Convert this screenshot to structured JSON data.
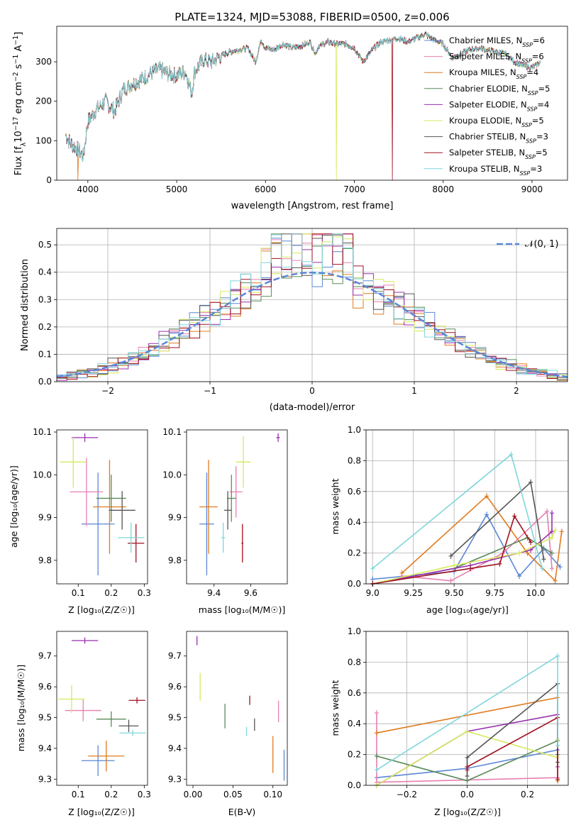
{
  "colors": [
    "#5a87d6",
    "#e87fb1",
    "#e07a1f",
    "#5a8a5a",
    "#9a2fb0",
    "#d6e95a",
    "#555555",
    "#a01020",
    "#7fd6dc"
  ],
  "figure": {
    "title": "PLATE=1324, MJD=53088, FIBERID=0500, z=0.006"
  },
  "chart_data": [
    {
      "id": "spectrum",
      "type": "line",
      "xlabel": "wavelength [Angstrom, rest frame]",
      "ylabel": "Flux [fλ10⁻¹⁷ erg cm⁻² s⁻¹ A⁻¹]",
      "xlim": [
        3650,
        9400
      ],
      "ylim": [
        0,
        390
      ],
      "xticks": [
        4000,
        5000,
        6000,
        7000,
        8000,
        9000
      ],
      "yticks": [
        0,
        100,
        200,
        300
      ],
      "grid": false,
      "legend_position": "top-right",
      "spectrum_anchor_points": {
        "x": [
          3750,
          3800,
          3850,
          3900,
          3950,
          4000,
          4050,
          4100,
          4200,
          4300,
          4400,
          4500,
          4600,
          4700,
          4800,
          4900,
          5000,
          5100,
          5170,
          5200,
          5300,
          5400,
          5500,
          5600,
          5700,
          5800,
          5890,
          5950,
          6000,
          6100,
          6200,
          6300,
          6400,
          6500,
          6563,
          6600,
          6700,
          6800,
          6900,
          7000,
          7100,
          7200,
          7300,
          7400,
          7500,
          7600,
          7700,
          7800,
          7900,
          8000,
          8100,
          8200,
          8300,
          8400,
          8500,
          8600,
          8700,
          8800,
          8900,
          9000,
          9100
        ],
        "y": [
          115,
          95,
          85,
          75,
          60,
          150,
          165,
          180,
          200,
          175,
          230,
          245,
          255,
          270,
          280,
          270,
          265,
          275,
          220,
          275,
          305,
          300,
          315,
          325,
          330,
          335,
          300,
          355,
          335,
          330,
          345,
          335,
          340,
          350,
          320,
          340,
          350,
          345,
          345,
          335,
          300,
          330,
          350,
          355,
          360,
          350,
          360,
          370,
          355,
          345,
          310,
          320,
          330,
          335,
          330,
          325,
          320,
          300,
          290,
          285,
          300
        ]
      },
      "series": [
        {
          "name": "Chabrier MILES, N_SSP=6"
        },
        {
          "name": "Salpeter MILES, N_SSP=6"
        },
        {
          "name": "Kroupa MILES, N_SSP=4"
        },
        {
          "name": "Chabrier ELODIE, N_SSP=5"
        },
        {
          "name": "Salpeter ELODIE, N_SSP=4"
        },
        {
          "name": "Kroupa ELODIE, N_SSP=5"
        },
        {
          "name": "Chabrier STELIB, N_SSP=3"
        },
        {
          "name": "Salpeter STELIB, N_SSP=5"
        },
        {
          "name": "Kroupa STELIB, N_SSP=3"
        }
      ]
    },
    {
      "id": "residuals",
      "type": "histogram",
      "xlabel": "(data-model)/error",
      "ylabel": "Normed distribution",
      "xlim": [
        -2.5,
        2.5
      ],
      "ylim": [
        0,
        0.56
      ],
      "xticks": [
        -2,
        -1,
        0,
        1,
        2
      ],
      "yticks": [
        0.0,
        0.1,
        0.2,
        0.3,
        0.4,
        0.5
      ],
      "grid": true,
      "bin_width": 0.1,
      "legend": [
        {
          "label": "𝒩(0, 1)"
        }
      ],
      "legend_position": "top-right"
    },
    {
      "id": "age-vs-metal",
      "type": "errorbar",
      "xlabel": "Z [log₁₀(Z/Z☉)]",
      "ylabel": "age  [log₁₀(age/yr)]",
      "xlim": [
        0.035,
        0.31
      ],
      "ylim": [
        9.745,
        10.105
      ],
      "xticks": [
        0.1,
        0.2,
        0.3
      ],
      "yticks": [
        9.8,
        9.9,
        10.0,
        10.1
      ],
      "grid": false,
      "points": [
        {
          "x": 0.16,
          "y": 9.885,
          "xerr": 0.05,
          "yerr": 0.12
        },
        {
          "x": 0.125,
          "y": 9.96,
          "xerr": 0.05,
          "yerr": 0.08
        },
        {
          "x": 0.195,
          "y": 9.925,
          "xerr": 0.05,
          "yerr": 0.11
        },
        {
          "x": 0.2,
          "y": 9.945,
          "xerr": 0.045,
          "yerr": 0.055
        },
        {
          "x": 0.12,
          "y": 10.087,
          "xerr": 0.04,
          "yerr": 0.01
        },
        {
          "x": 0.085,
          "y": 10.03,
          "xerr": 0.04,
          "yerr": 0.06
        },
        {
          "x": 0.233,
          "y": 9.917,
          "xerr": 0.04,
          "yerr": 0.045
        },
        {
          "x": 0.275,
          "y": 9.84,
          "xerr": 0.025,
          "yerr": 0.045
        },
        {
          "x": 0.26,
          "y": 9.853,
          "xerr": 0.04,
          "yerr": 0.035
        }
      ]
    },
    {
      "id": "age-vs-mass",
      "type": "errorbar",
      "xlabel": "mass [log₁₀(M/M☉)]",
      "ylabel": "",
      "xlim": [
        9.25,
        9.8
      ],
      "ylim": [
        9.745,
        10.105
      ],
      "xticks": [
        9.4,
        9.6
      ],
      "yticks": [
        9.8,
        9.9,
        10.0,
        10.1
      ],
      "grid": false,
      "points": [
        {
          "x": 9.36,
          "y": 9.885,
          "xerr": 0.04,
          "yerr": 0.12
        },
        {
          "x": 9.52,
          "y": 9.96,
          "xerr": 0.035,
          "yerr": 0.06
        },
        {
          "x": 9.37,
          "y": 9.925,
          "xerr": 0.05,
          "yerr": 0.11
        },
        {
          "x": 9.495,
          "y": 9.945,
          "xerr": 0.025,
          "yerr": 0.055
        },
        {
          "x": 9.75,
          "y": 10.087,
          "xerr": 0.01,
          "yerr": 0.01
        },
        {
          "x": 9.56,
          "y": 10.03,
          "xerr": 0.04,
          "yerr": 0.06
        },
        {
          "x": 9.475,
          "y": 9.917,
          "xerr": 0.02,
          "yerr": 0.045
        },
        {
          "x": 9.555,
          "y": 9.84,
          "xerr": 0.005,
          "yerr": 0.045
        },
        {
          "x": 9.45,
          "y": 9.853,
          "xerr": 0.01,
          "yerr": 0.035
        }
      ]
    },
    {
      "id": "weight-vs-age",
      "type": "line",
      "xlabel": "age  [log₁₀(age/yr)]",
      "ylabel": "mass weight",
      "xlim": [
        8.96,
        10.2
      ],
      "ylim": [
        0,
        1.0
      ],
      "xticks": [
        9.0,
        9.25,
        9.5,
        9.75,
        10.0
      ],
      "yticks": [
        0.0,
        0.2,
        0.4,
        0.6,
        0.8,
        1.0
      ],
      "grid": true,
      "series": [
        {
          "x": [
            9.0,
            9.5,
            9.7,
            9.9,
            10.05,
            10.15
          ],
          "y": [
            0.03,
            0.08,
            0.45,
            0.05,
            0.23,
            0.11
          ]
        },
        {
          "x": [
            9.18,
            9.48,
            9.8,
            10.07,
            10.1
          ],
          "y": [
            0.05,
            0.02,
            0.2,
            0.47,
            0.1
          ]
        },
        {
          "x": [
            9.18,
            9.7,
            9.95,
            10.12,
            10.16
          ],
          "y": [
            0.07,
            0.57,
            0.2,
            0.02,
            0.34
          ]
        },
        {
          "x": [
            9.0,
            9.5,
            9.95,
            10.1
          ],
          "y": [
            0.0,
            0.1,
            0.3,
            0.2
          ]
        },
        {
          "x": [
            9.0,
            9.6,
            9.97,
            10.1,
            10.1
          ],
          "y": [
            0.0,
            0.12,
            0.22,
            0.34,
            0.46
          ]
        },
        {
          "x": [
            9.0,
            9.5,
            9.9,
            10.1,
            10.12
          ],
          "y": [
            0.0,
            0.12,
            0.2,
            0.3,
            0.35
          ]
        },
        {
          "x": [
            9.48,
            9.97,
            10.05
          ],
          "y": [
            0.18,
            0.66,
            0.16
          ]
        },
        {
          "x": [
            9.0,
            9.6,
            9.78,
            9.87,
            9.97
          ],
          "y": [
            0.0,
            0.1,
            0.13,
            0.44,
            0.27
          ]
        },
        {
          "x": [
            9.0,
            9.85,
            10.04
          ],
          "y": [
            0.1,
            0.84,
            0.1
          ]
        }
      ]
    },
    {
      "id": "mass-vs-metal",
      "type": "errorbar",
      "xlabel": "Z [log₁₀(Z/Z☉)]",
      "ylabel": "mass [log₁₀(M/M☉)]",
      "xlim": [
        0.035,
        0.31
      ],
      "ylim": [
        9.28,
        9.78
      ],
      "xticks": [
        0.1,
        0.2,
        0.3
      ],
      "yticks": [
        9.3,
        9.4,
        9.5,
        9.6,
        9.7
      ],
      "grid": false,
      "points": [
        {
          "x": 0.16,
          "y": 9.36,
          "xerr": 0.05,
          "yerr": 0.05
        },
        {
          "x": 0.115,
          "y": 9.523,
          "xerr": 0.055,
          "yerr": 0.035
        },
        {
          "x": 0.185,
          "y": 9.375,
          "xerr": 0.055,
          "yerr": 0.05
        },
        {
          "x": 0.2,
          "y": 9.495,
          "xerr": 0.045,
          "yerr": 0.025
        },
        {
          "x": 0.12,
          "y": 9.75,
          "xerr": 0.04,
          "yerr": 0.01
        },
        {
          "x": 0.08,
          "y": 9.56,
          "xerr": 0.04,
          "yerr": 0.045
        },
        {
          "x": 0.253,
          "y": 9.473,
          "xerr": 0.03,
          "yerr": 0.02
        },
        {
          "x": 0.278,
          "y": 9.556,
          "xerr": 0.025,
          "yerr": 0.01
        },
        {
          "x": 0.265,
          "y": 9.45,
          "xerr": 0.04,
          "yerr": 0.01
        }
      ]
    },
    {
      "id": "mass-vs-ebv",
      "type": "errorbar",
      "xlabel": "E(B-V)",
      "ylabel": "",
      "xlim": [
        -0.008,
        0.118
      ],
      "ylim": [
        9.28,
        9.78
      ],
      "xticks": [
        0.0,
        0.05,
        0.1
      ],
      "yticks": [
        9.3,
        9.4,
        9.5,
        9.6,
        9.7
      ],
      "grid": false,
      "points": [
        {
          "x": 0.114,
          "y": 9.345,
          "xerr": 0,
          "yerr": 0.05
        },
        {
          "x": 0.107,
          "y": 9.52,
          "xerr": 0,
          "yerr": 0.035
        },
        {
          "x": 0.1,
          "y": 9.38,
          "xerr": 0,
          "yerr": 0.06
        },
        {
          "x": 0.04,
          "y": 9.505,
          "xerr": 0,
          "yerr": 0.04
        },
        {
          "x": 0.005,
          "y": 9.75,
          "xerr": 0,
          "yerr": 0.015
        },
        {
          "x": 0.009,
          "y": 9.6,
          "xerr": 0,
          "yerr": 0.045
        },
        {
          "x": 0.077,
          "y": 9.477,
          "xerr": 0,
          "yerr": 0.02
        },
        {
          "x": 0.071,
          "y": 9.556,
          "xerr": 0,
          "yerr": 0.015
        },
        {
          "x": 0.067,
          "y": 9.455,
          "xerr": 0,
          "yerr": 0.015
        }
      ]
    },
    {
      "id": "weight-vs-metal",
      "type": "line",
      "xlabel": "Z [log₁₀(Z/Z☉)]",
      "ylabel": "mass weight",
      "xlim": [
        -0.335,
        0.335
      ],
      "ylim": [
        0,
        1.0
      ],
      "xticks": [
        -0.2,
        0.0,
        0.2
      ],
      "yticks": [
        0.0,
        0.2,
        0.4,
        0.6,
        0.8,
        1.0
      ],
      "grid": true,
      "series": [
        {
          "x": [
            -0.3,
            0.0,
            0.3
          ],
          "y": [
            0.05,
            0.11,
            0.23
          ]
        },
        {
          "x": [
            -0.3,
            -0.3,
            0.3,
            0.3
          ],
          "y": [
            0.47,
            0.02,
            0.05,
            0.2
          ]
        },
        {
          "x": [
            -0.3,
            0.3,
            0.3
          ],
          "y": [
            0.34,
            0.57,
            0.03
          ]
        },
        {
          "x": [
            -0.3,
            0.0,
            0.3,
            0.3
          ],
          "y": [
            0.19,
            0.03,
            0.29,
            0.2
          ]
        },
        {
          "x": [
            -0.3,
            0.0,
            0.3,
            0.3
          ],
          "y": [
            0.0,
            0.35,
            0.46,
            0.12
          ]
        },
        {
          "x": [
            -0.3,
            0.0,
            0.3,
            0.3
          ],
          "y": [
            0.0,
            0.35,
            0.18,
            0.3
          ]
        },
        {
          "x": [
            0.0,
            0.0,
            0.3,
            0.3
          ],
          "y": [
            0.06,
            0.18,
            0.66,
            0.15
          ]
        },
        {
          "x": [
            0.0,
            0.0,
            0.3,
            0.3
          ],
          "y": [
            0.1,
            0.12,
            0.44,
            0.04
          ]
        },
        {
          "x": [
            -0.3,
            0.3,
            0.3
          ],
          "y": [
            0.1,
            0.84,
            0.26
          ]
        }
      ]
    }
  ]
}
